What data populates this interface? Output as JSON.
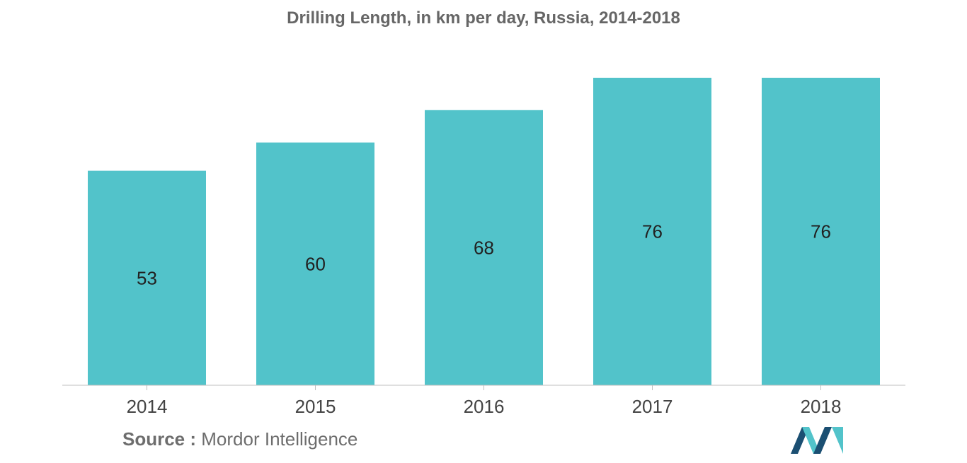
{
  "chart_data": {
    "type": "bar",
    "title": "Drilling Length, in km per day, Russia, 2014-2018",
    "categories": [
      "2014",
      "2015",
      "2016",
      "2017",
      "2018"
    ],
    "values": [
      53,
      60,
      68,
      76,
      76
    ],
    "data_labels": [
      "53",
      "60",
      "68",
      "76",
      "76"
    ],
    "xlabel": "",
    "ylabel": "",
    "ylim": [
      0,
      76
    ],
    "grid": false,
    "legend": "none",
    "bar_color": "#52c3ca",
    "label_color": "#222222",
    "tick_label_color": "#444444",
    "axis_color": "#bfbfbf"
  },
  "source": {
    "label": "Source :",
    "text": "Mordor Intelligence"
  },
  "logo": {
    "icon": "mordor-intelligence-logo",
    "colors": [
      "#1b4f72",
      "#52c3ca"
    ]
  }
}
